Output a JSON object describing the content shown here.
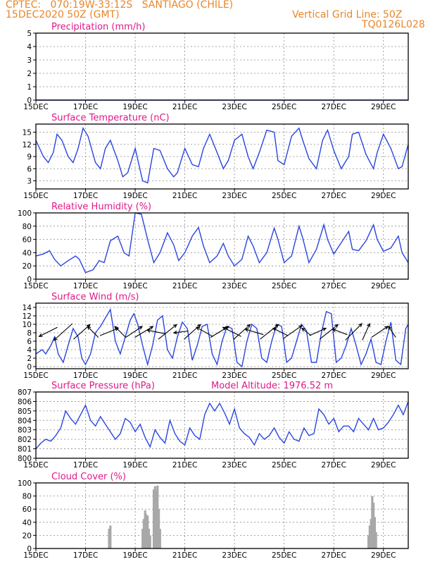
{
  "header": {
    "line1_left": "CPTEC:   070:19W-33:12S   SANTIAGO (CHILE)",
    "line2_left": "15DEC2020 50Z (GMT)",
    "line1_right": "Vertical Grid Line: 50Z",
    "line2_right": "TQ0126L028"
  },
  "chart_data": [
    {
      "id": "precipitation",
      "type": "line",
      "title": "Precipitation (mm/h)",
      "ylim": [
        0,
        5
      ],
      "yticks": [
        0,
        1,
        2,
        3,
        4,
        5
      ],
      "xticks": [
        "15DEC",
        "17DEC",
        "19DEC",
        "21DEC",
        "23DEC",
        "25DEC",
        "27DEC",
        "29DEC"
      ],
      "x_start_day": 15.0,
      "x_end_day": 30.0,
      "series": [
        {
          "x": [
            15.0,
            30.0
          ],
          "values": [
            0,
            0
          ]
        }
      ]
    },
    {
      "id": "surface_temperature",
      "type": "line",
      "title": "Surface Temperature (nC)",
      "ylim": [
        1,
        17
      ],
      "yticks": [
        3,
        6,
        9,
        12,
        15
      ],
      "xticks": [
        "15DEC",
        "17DEC",
        "19DEC",
        "21DEC",
        "23DEC",
        "25DEC",
        "27DEC",
        "29DEC"
      ],
      "x_start_day": 15.0,
      "x_end_day": 30.0,
      "series": [
        {
          "x": [
            15.0,
            15.3,
            15.5,
            15.7,
            15.85,
            16.05,
            16.3,
            16.5,
            16.7,
            16.9,
            17.1,
            17.4,
            17.6,
            17.8,
            18.0,
            18.3,
            18.5,
            18.7,
            19.0,
            19.3,
            19.5,
            19.75,
            20.0,
            20.3,
            20.55,
            20.7,
            21.0,
            21.3,
            21.55,
            21.75,
            22.0,
            22.3,
            22.55,
            22.75,
            23.0,
            23.3,
            23.55,
            23.75,
            24.0,
            24.3,
            24.6,
            24.75,
            25.0,
            25.3,
            25.6,
            25.75,
            26.0,
            26.3,
            26.55,
            26.75,
            27.0,
            27.3,
            27.6,
            27.75,
            28.0,
            28.3,
            28.6,
            28.75,
            29.0,
            29.3,
            29.6,
            29.75,
            30.0
          ],
          "values": [
            13,
            9,
            7.5,
            10,
            14.5,
            13,
            9,
            7.5,
            11,
            16,
            14,
            7.5,
            6,
            11,
            13,
            8,
            4,
            5,
            11,
            3,
            2.5,
            11,
            10.5,
            6,
            4,
            5,
            11,
            7,
            6.5,
            11,
            14.5,
            10,
            6,
            8,
            13,
            14.5,
            9,
            6,
            10,
            15.5,
            15,
            8,
            7,
            14,
            16,
            13,
            8.5,
            6,
            13,
            15.5,
            10.5,
            6,
            9,
            14.5,
            15,
            9.5,
            6,
            10,
            14.5,
            11,
            6,
            6.5,
            12
          ]
        }
      ]
    },
    {
      "id": "relative_humidity",
      "type": "line",
      "title": "Relative Humidity (%)",
      "ylim": [
        0,
        100
      ],
      "yticks": [
        0,
        20,
        40,
        60,
        80,
        100
      ],
      "xticks": [
        "15DEC",
        "17DEC",
        "19DEC",
        "21DEC",
        "23DEC",
        "25DEC",
        "27DEC",
        "29DEC"
      ],
      "x_start_day": 15.0,
      "x_end_day": 30.0,
      "series": [
        {
          "x": [
            15.0,
            15.3,
            15.55,
            15.75,
            16.0,
            16.3,
            16.6,
            16.75,
            17.0,
            17.3,
            17.55,
            17.75,
            18.0,
            18.3,
            18.55,
            18.75,
            19.0,
            19.25,
            19.5,
            19.75,
            20.0,
            20.3,
            20.55,
            20.75,
            21.0,
            21.3,
            21.55,
            21.75,
            22.0,
            22.3,
            22.55,
            22.75,
            23.0,
            23.3,
            23.55,
            23.75,
            24.0,
            24.3,
            24.6,
            24.75,
            25.0,
            25.3,
            25.6,
            25.75,
            26.0,
            26.3,
            26.6,
            26.75,
            27.0,
            27.3,
            27.6,
            27.75,
            28.0,
            28.3,
            28.6,
            28.75,
            29.0,
            29.3,
            29.6,
            29.75,
            30.0
          ],
          "values": [
            35,
            38,
            43,
            30,
            20,
            28,
            35,
            30,
            10,
            14,
            28,
            25,
            58,
            65,
            40,
            35,
            100,
            98,
            60,
            25,
            40,
            70,
            52,
            28,
            40,
            65,
            78,
            50,
            25,
            35,
            54,
            35,
            20,
            30,
            65,
            50,
            25,
            40,
            77,
            60,
            25,
            35,
            80,
            62,
            25,
            45,
            82,
            60,
            38,
            55,
            72,
            45,
            43,
            58,
            82,
            60,
            42,
            47,
            65,
            40,
            25
          ]
        }
      ]
    },
    {
      "id": "surface_wind",
      "type": "line",
      "title": "Surface Wind (m/s)",
      "ylim": [
        -0.5,
        15
      ],
      "yticks": [
        0,
        2,
        4,
        6,
        8,
        10,
        12,
        14
      ],
      "xticks": [
        "15DEC",
        "17DEC",
        "19DEC",
        "21DEC",
        "23DEC",
        "25DEC",
        "27DEC",
        "29DEC"
      ],
      "x_start_day": 15.0,
      "x_end_day": 30.0,
      "series": [
        {
          "x": [
            15.0,
            15.25,
            15.4,
            15.6,
            15.75,
            15.9,
            16.1,
            16.3,
            16.5,
            16.7,
            16.85,
            17.0,
            17.2,
            17.4,
            17.6,
            17.8,
            18.0,
            18.2,
            18.4,
            18.6,
            18.8,
            18.95,
            19.1,
            19.3,
            19.5,
            19.7,
            19.9,
            20.1,
            20.3,
            20.5,
            20.7,
            20.9,
            21.1,
            21.3,
            21.5,
            21.7,
            21.9,
            22.1,
            22.3,
            22.5,
            22.7,
            22.9,
            23.1,
            23.3,
            23.5,
            23.7,
            23.9,
            24.1,
            24.3,
            24.5,
            24.7,
            24.9,
            25.1,
            25.3,
            25.5,
            25.7,
            25.9,
            26.1,
            26.3,
            26.5,
            26.7,
            26.9,
            27.1,
            27.3,
            27.5,
            27.7,
            27.9,
            28.1,
            28.3,
            28.5,
            28.7,
            28.9,
            29.1,
            29.3,
            29.5,
            29.7,
            29.9,
            30.0
          ],
          "values": [
            3,
            4,
            3,
            5,
            7,
            3,
            1,
            5,
            9,
            7,
            2,
            0.5,
            3,
            8,
            9.5,
            11.5,
            13.5,
            6,
            3,
            7,
            11,
            12.5,
            10,
            5,
            0.5,
            5,
            11,
            12,
            4,
            2,
            7,
            10.5,
            9,
            1.5,
            5,
            9.5,
            10,
            3,
            0.5,
            6,
            9.5,
            9,
            1,
            0,
            6,
            10,
            9,
            2,
            1,
            6,
            10,
            9.5,
            1,
            2,
            6,
            10,
            8.5,
            1,
            1,
            8,
            13,
            12.5,
            1,
            2,
            5,
            9,
            5,
            0.5,
            3,
            6.5,
            1,
            0.5,
            6,
            10.5,
            1.5,
            0.5,
            9,
            10
          ]
        }
      ],
      "wind_arrows": [
        {
          "day": 15.5,
          "u": -1,
          "v": -0.5
        },
        {
          "day": 16.1,
          "u": -1,
          "v": -0.9
        },
        {
          "day": 16.85,
          "u": 0.9,
          "v": 0.8
        },
        {
          "day": 17.3,
          "u": -0.6,
          "v": 0.6
        },
        {
          "day": 17.95,
          "u": 1,
          "v": 0.4
        },
        {
          "day": 18.4,
          "u": -0.6,
          "v": 0.6
        },
        {
          "day": 18.95,
          "u": 0.9,
          "v": 0.6
        },
        {
          "day": 19.35,
          "u": 1,
          "v": 0.6
        },
        {
          "day": 19.85,
          "u": -1,
          "v": 0.2
        },
        {
          "day": 20.3,
          "u": 1,
          "v": 0.8
        },
        {
          "day": 20.85,
          "u": -0.8,
          "v": -0.1
        },
        {
          "day": 21.3,
          "u": 0.9,
          "v": 0.8
        },
        {
          "day": 21.8,
          "u": -0.9,
          "v": 0.5
        },
        {
          "day": 22.4,
          "u": 1,
          "v": 0.6
        },
        {
          "day": 22.9,
          "u": -1,
          "v": 0.5
        },
        {
          "day": 23.3,
          "u": 0.9,
          "v": 0.8
        },
        {
          "day": 23.8,
          "u": -1,
          "v": 0.3
        },
        {
          "day": 24.4,
          "u": 1,
          "v": 0.8
        },
        {
          "day": 24.85,
          "u": -0.8,
          "v": 0.4
        },
        {
          "day": 25.35,
          "u": 1,
          "v": 0.7
        },
        {
          "day": 25.9,
          "u": -0.5,
          "v": 0.4
        },
        {
          "day": 26.35,
          "u": 0.9,
          "v": 0.4
        },
        {
          "day": 26.8,
          "u": 1,
          "v": 0.8
        },
        {
          "day": 27.25,
          "u": -0.8,
          "v": 0.3
        },
        {
          "day": 27.8,
          "u": 0.9,
          "v": 0.9
        },
        {
          "day": 28.3,
          "u": 0.4,
          "v": 0.9
        },
        {
          "day": 28.85,
          "u": 0.9,
          "v": 0.6
        },
        {
          "day": 29.35,
          "u": -0.4,
          "v": 0.6
        }
      ]
    },
    {
      "id": "surface_pressure",
      "type": "line",
      "title": "Surface Pressure (hPa)",
      "annotation": "Model Altitude: 1976.52 m",
      "ylim": [
        800,
        807
      ],
      "yticks": [
        800,
        801,
        802,
        803,
        804,
        805,
        806,
        807
      ],
      "xticks": [
        "15DEC",
        "17DEC",
        "19DEC",
        "21DEC",
        "23DEC",
        "25DEC",
        "27DEC",
        "29DEC"
      ],
      "x_start_day": 15.0,
      "x_end_day": 30.0,
      "series": [
        {
          "x": [
            15.0,
            15.2,
            15.4,
            15.6,
            15.8,
            16.0,
            16.2,
            16.4,
            16.6,
            16.8,
            17.0,
            17.2,
            17.4,
            17.6,
            17.8,
            18.0,
            18.2,
            18.4,
            18.6,
            18.8,
            19.0,
            19.2,
            19.4,
            19.6,
            19.8,
            20.0,
            20.2,
            20.4,
            20.6,
            20.8,
            21.0,
            21.2,
            21.4,
            21.6,
            21.8,
            22.0,
            22.2,
            22.4,
            22.6,
            22.8,
            23.0,
            23.2,
            23.4,
            23.6,
            23.8,
            24.0,
            24.2,
            24.4,
            24.6,
            24.8,
            25.0,
            25.2,
            25.4,
            25.6,
            25.8,
            26.0,
            26.2,
            26.4,
            26.6,
            26.8,
            27.0,
            27.2,
            27.4,
            27.6,
            27.8,
            28.0,
            28.2,
            28.4,
            28.6,
            28.8,
            29.0,
            29.2,
            29.4,
            29.6,
            29.8,
            30.0
          ],
          "values": [
            801,
            801.6,
            802,
            801.8,
            802.4,
            803.2,
            805,
            804.2,
            803.6,
            804.6,
            805.6,
            804,
            803.4,
            804.4,
            803.6,
            802.8,
            802,
            802.6,
            804.2,
            803.8,
            802.8,
            803.6,
            802.2,
            801.2,
            803,
            802.2,
            801.6,
            804,
            802.6,
            801.8,
            801.4,
            803.2,
            802.4,
            802,
            804.6,
            805.8,
            805,
            805.8,
            804.8,
            803.6,
            805.2,
            803.2,
            802.6,
            802.2,
            801.4,
            802.6,
            802,
            802.4,
            803.2,
            802.2,
            801.6,
            802.8,
            802,
            801.8,
            803.2,
            802.4,
            802.6,
            805.2,
            804.6,
            803.6,
            804.2,
            802.8,
            803.4,
            803.4,
            802.8,
            804.2,
            803.6,
            803,
            804.2,
            803,
            803.2,
            803.8,
            804.6,
            805.6,
            804.6,
            806
          ]
        }
      ]
    },
    {
      "id": "cloud_cover",
      "type": "bar",
      "title": "Cloud Cover (%)",
      "ylim": [
        0,
        100
      ],
      "yticks": [
        0,
        20,
        40,
        60,
        80,
        100
      ],
      "xticks": [
        "15DEC",
        "17DEC",
        "19DEC",
        "21DEC",
        "23DEC",
        "25DEC",
        "27DEC",
        "29DEC"
      ],
      "x_start_day": 15.0,
      "x_end_day": 30.0,
      "series": [
        {
          "x": [
            17.95,
            18.0,
            19.3,
            19.35,
            19.4,
            19.45,
            19.5,
            19.55,
            19.6,
            19.75,
            19.8,
            19.85,
            19.9,
            19.95,
            20.0,
            28.4,
            28.45,
            28.5,
            28.55,
            28.6,
            28.65,
            28.7
          ],
          "values": [
            30,
            35,
            30,
            45,
            58,
            52,
            50,
            30,
            20,
            90,
            95,
            88,
            96,
            60,
            30,
            20,
            35,
            45,
            80,
            70,
            48,
            25
          ]
        }
      ]
    }
  ]
}
